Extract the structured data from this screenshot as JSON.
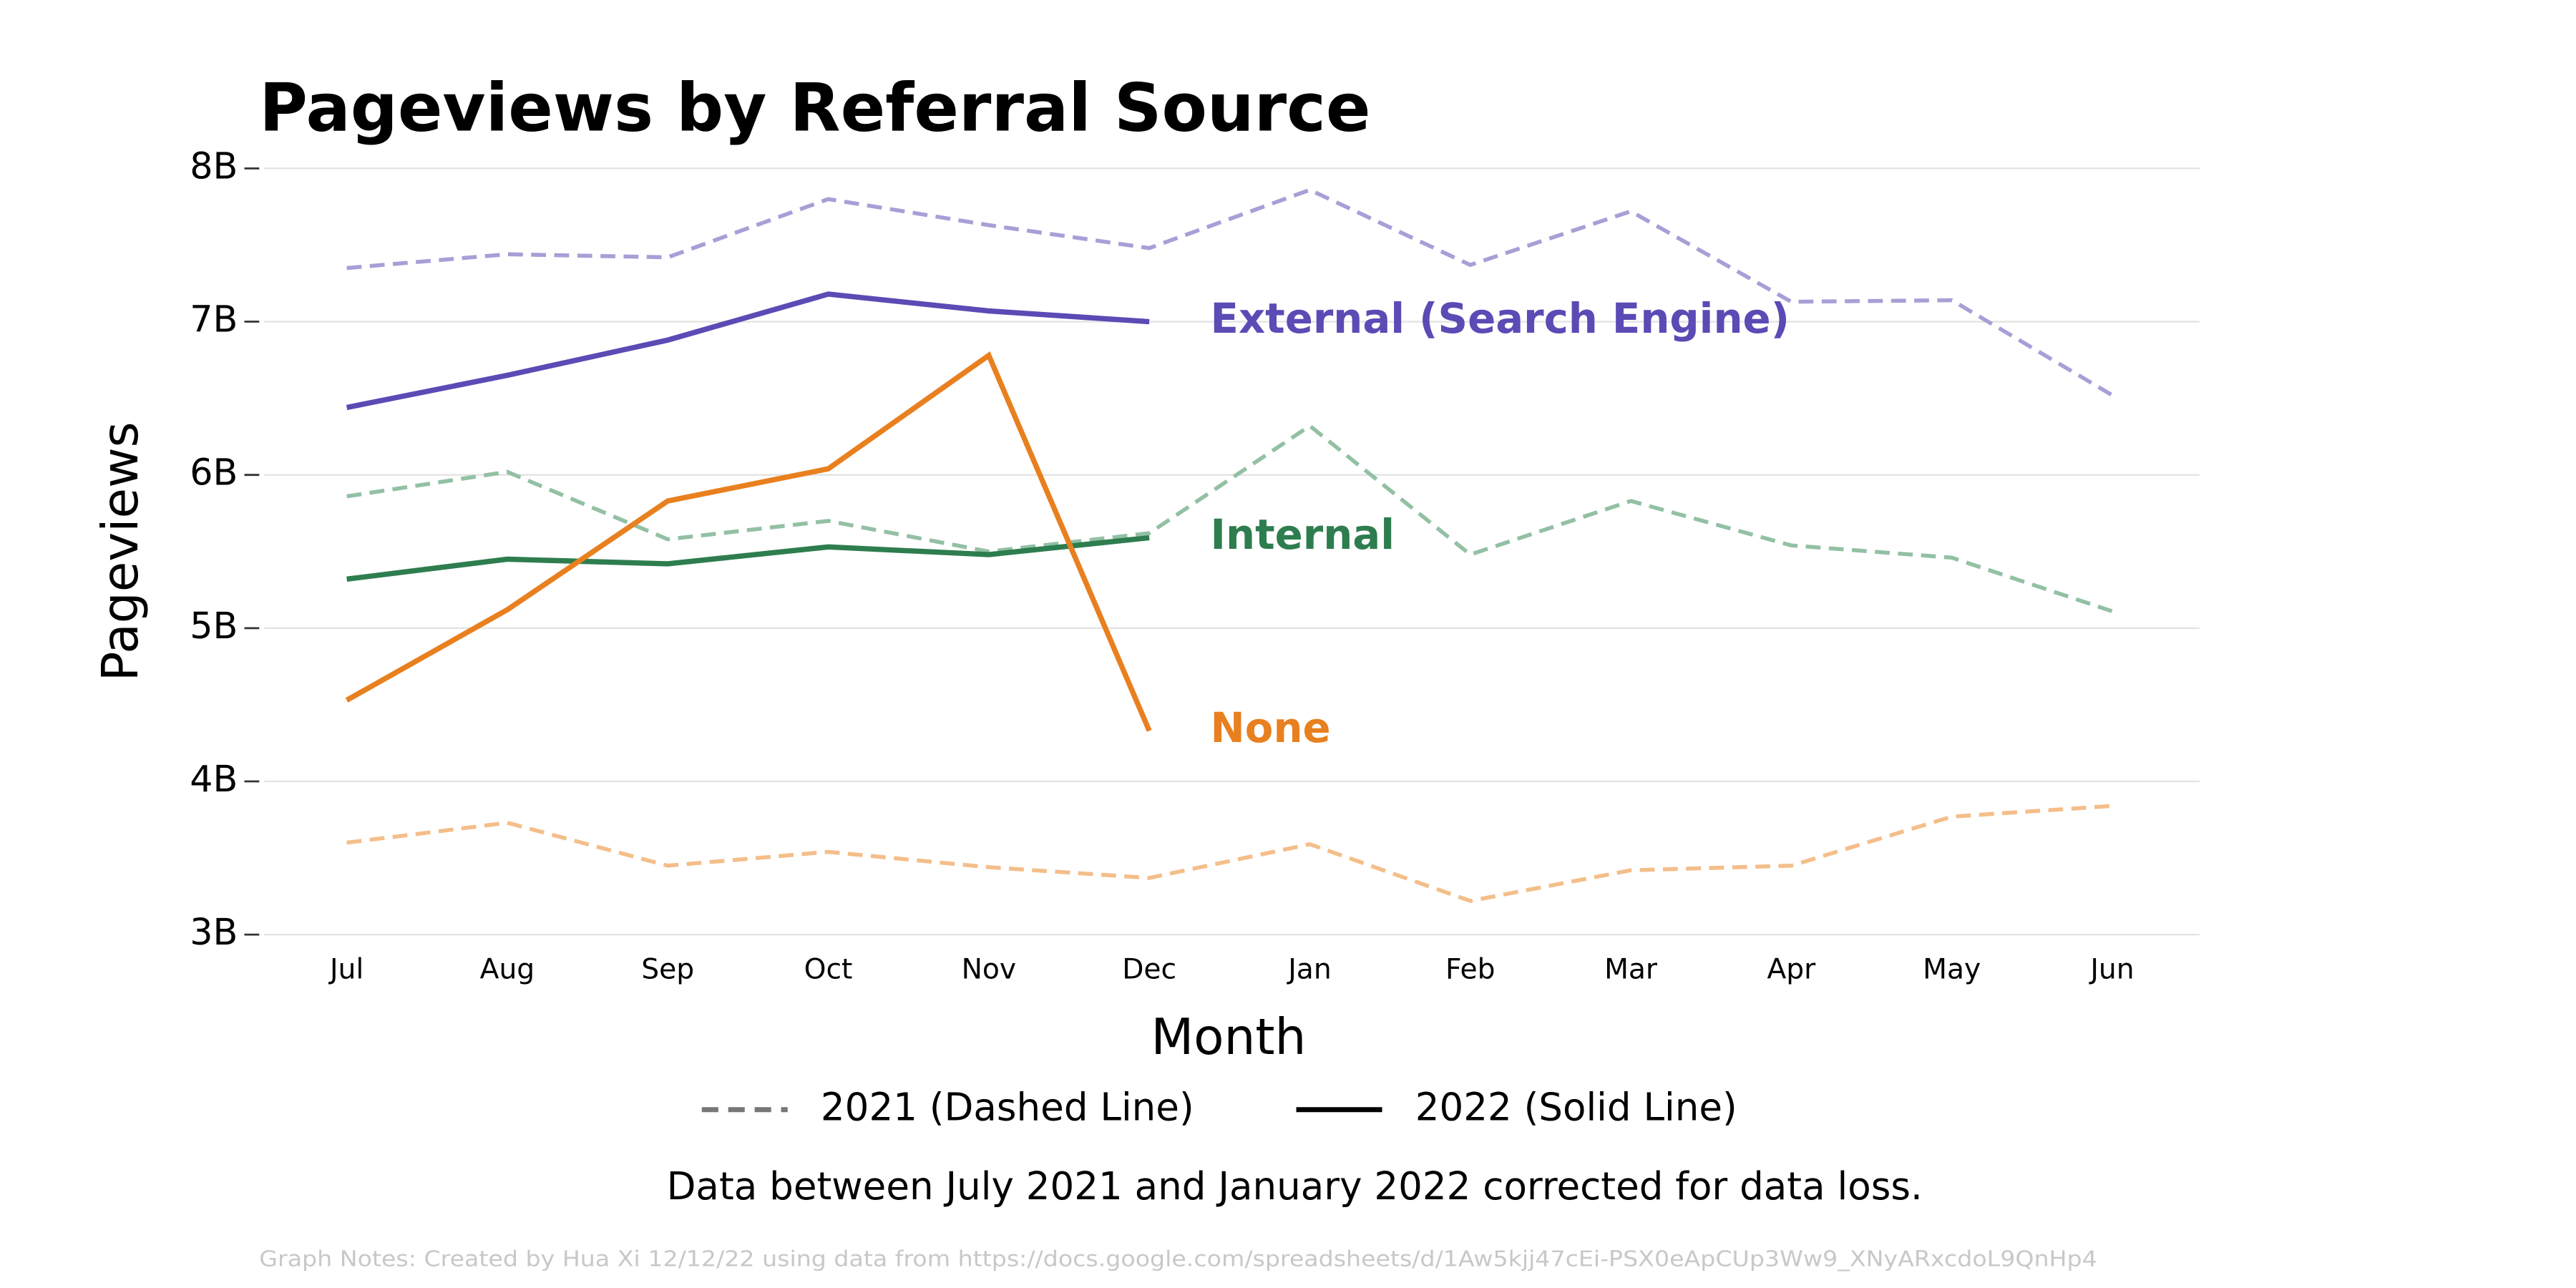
{
  "chart_data": {
    "type": "line",
    "title": "Pageviews by Referral Source",
    "x_label": "Month",
    "y_label": "Pageviews",
    "note": "Data between July 2021 and January 2022 corrected for data loss.",
    "footnote": "Graph Notes: Created by Hua Xi 12/12/22 using data from https://docs.google.com/spreadsheets/d/1Aw5kjj47cEi-PSX0eApCUp3Ww9_XNyARxcdoL9QnHp4",
    "categories": [
      "Jul",
      "Aug",
      "Sep",
      "Oct",
      "Nov",
      "Dec",
      "Jan",
      "Feb",
      "Mar",
      "Apr",
      "May",
      "Jun"
    ],
    "ylim": [
      3,
      8
    ],
    "yticks": [
      {
        "value": 3,
        "label": "3B"
      },
      {
        "value": 4,
        "label": "4B"
      },
      {
        "value": 5,
        "label": "5B"
      },
      {
        "value": 6,
        "label": "6B"
      },
      {
        "value": 7,
        "label": "7B"
      },
      {
        "value": 8,
        "label": "8B"
      }
    ],
    "grid": true,
    "legend": [
      {
        "label": "2021 (Dashed Line)",
        "color": "#777777",
        "dashed": true
      },
      {
        "label": "2022 (Solid Line)",
        "color": "#000000",
        "dashed": false
      }
    ],
    "series": [
      {
        "color": "#a79fd6",
        "dashed": true,
        "values": [
          7.35,
          7.44,
          7.42,
          7.8,
          7.63,
          7.48,
          7.86,
          7.37,
          7.72,
          7.13,
          7.14,
          6.52
        ]
      },
      {
        "color": "#93c0a4",
        "dashed": true,
        "values": [
          5.86,
          6.02,
          5.58,
          5.7,
          5.5,
          5.62,
          6.32,
          5.48,
          5.83,
          5.54,
          5.46,
          5.11
        ]
      },
      {
        "color": "#f4be8a",
        "dashed": true,
        "values": [
          3.6,
          3.73,
          3.45,
          3.54,
          3.44,
          3.37,
          3.59,
          3.22,
          3.42,
          3.45,
          3.77,
          3.84
        ]
      },
      {
        "name": "External (Search Engine)",
        "color": "#5a4bb5",
        "dashed": false,
        "values": [
          6.44,
          6.65,
          6.88,
          7.18,
          7.07,
          7.0,
          null,
          null,
          null,
          null,
          null,
          null
        ]
      },
      {
        "name": "Internal",
        "color": "#2e7d4f",
        "dashed": false,
        "values": [
          5.32,
          5.45,
          5.42,
          5.53,
          5.48,
          5.59,
          null,
          null,
          null,
          null,
          null,
          null
        ]
      },
      {
        "name": "None",
        "color": "#e8801f",
        "dashed": false,
        "values": [
          4.53,
          5.12,
          5.83,
          6.04,
          6.78,
          4.33,
          null,
          null,
          null,
          null,
          null,
          null
        ]
      }
    ]
  }
}
